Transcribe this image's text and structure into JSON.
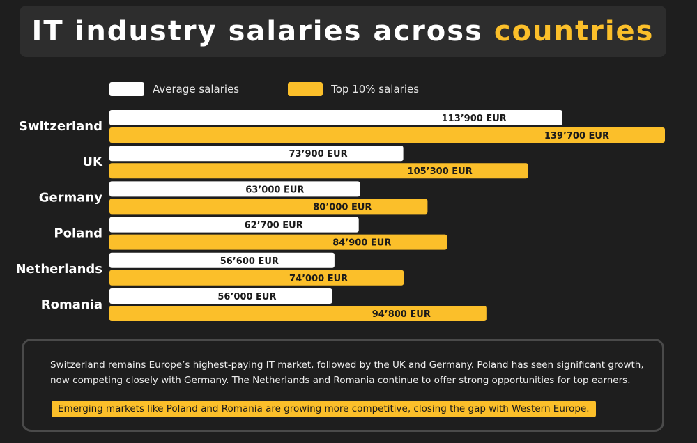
{
  "title": {
    "main": "IT industry salaries across",
    "highlight": "countries"
  },
  "legend": [
    {
      "label": "Average salaries",
      "color": "#ffffff"
    },
    {
      "label": "Top 10% salaries",
      "color": "#fbbf2a"
    }
  ],
  "chart_data": {
    "type": "bar",
    "orientation": "horizontal",
    "title": "IT industry salaries across countries",
    "categories": [
      "Switzerland",
      "UK",
      "Germany",
      "Poland",
      "Netherlands",
      "Romania"
    ],
    "series": [
      {
        "name": "Average salaries",
        "color": "#ffffff",
        "values": [
          113900,
          73900,
          63000,
          62700,
          56600,
          56000
        ],
        "labels": [
          "113’900 EUR",
          "73’900 EUR",
          "63’000 EUR",
          "62’700 EUR",
          "56’600 EUR",
          "56’000 EUR"
        ]
      },
      {
        "name": "Top 10% salaries",
        "color": "#fbbf2a",
        "values": [
          139700,
          105300,
          80000,
          84900,
          74000,
          94800
        ],
        "labels": [
          "139’700 EUR",
          "105’300 EUR",
          "80’000 EUR",
          "84’900 EUR",
          "74’000 EUR",
          "94’800 EUR"
        ]
      }
    ],
    "unit": "EUR",
    "xlim": [
      0,
      139700
    ],
    "grid": false,
    "legend_position": "top"
  },
  "note": {
    "text": "Switzerland remains Europe’s highest-paying IT market, followed by the UK and Germany. Poland has seen significant growth, now competing closely with Germany. The Netherlands and Romania continue to offer strong opportunities for top earners.",
    "highlight": "Emerging markets like Poland and Romania are growing more competitive, closing the gap with Western Europe."
  }
}
